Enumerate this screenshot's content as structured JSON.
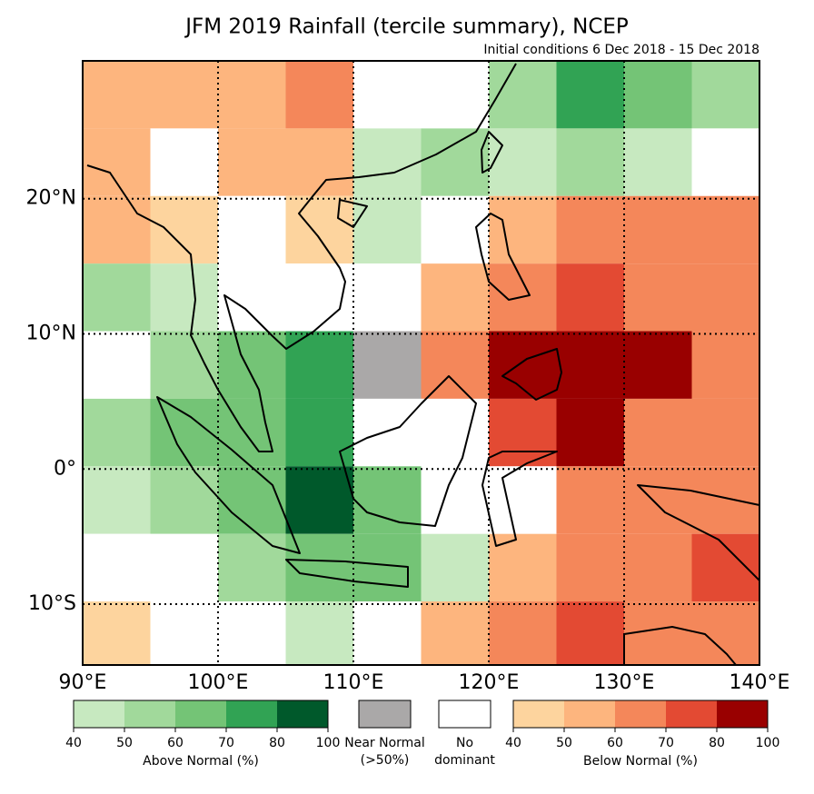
{
  "map": {
    "title": "JFM 2019 Rainfall (tercile summary), NCEP",
    "subtitle": "Initial conditions 6 Dec 2018 - 15 Dec 2018",
    "xlim": [
      90,
      140
    ],
    "ylim": [
      -14.5,
      30.2
    ],
    "xticks": [
      {
        "value": 90,
        "label": "90°E"
      },
      {
        "value": 100,
        "label": "100°E"
      },
      {
        "value": 110,
        "label": "110°E"
      },
      {
        "value": 120,
        "label": "120°E"
      },
      {
        "value": 130,
        "label": "130°E"
      },
      {
        "value": 140,
        "label": "140°E"
      }
    ],
    "yticks": [
      {
        "value": 20,
        "label": "20°N"
      },
      {
        "value": 10,
        "label": "10°N"
      },
      {
        "value": 0,
        "label": "0°"
      },
      {
        "value": -10,
        "label": "10°S"
      }
    ],
    "grid": true,
    "cells": [
      [
        [
          "below",
          50
        ],
        [
          "below",
          50
        ],
        [
          "below",
          50
        ],
        [
          "below",
          60
        ],
        [
          "none",
          null
        ],
        [
          "none",
          null
        ],
        [
          "above",
          50
        ],
        [
          "above",
          70
        ],
        [
          "above",
          60
        ],
        [
          "above",
          50
        ]
      ],
      [
        [
          "below",
          50
        ],
        [
          "none",
          null
        ],
        [
          "below",
          50
        ],
        [
          "below",
          50
        ],
        [
          "above",
          40
        ],
        [
          "above",
          50
        ],
        [
          "above",
          40
        ],
        [
          "above",
          50
        ],
        [
          "above",
          40
        ],
        [
          "none",
          null
        ]
      ],
      [
        [
          "below",
          50
        ],
        [
          "below",
          40
        ],
        [
          "none",
          null
        ],
        [
          "below",
          40
        ],
        [
          "above",
          40
        ],
        [
          "none",
          null
        ],
        [
          "below",
          50
        ],
        [
          "below",
          60
        ],
        [
          "below",
          60
        ],
        [
          "below",
          60
        ]
      ],
      [
        [
          "above",
          50
        ],
        [
          "above",
          40
        ],
        [
          "none",
          null
        ],
        [
          "none",
          null
        ],
        [
          "none",
          null
        ],
        [
          "below",
          50
        ],
        [
          "below",
          60
        ],
        [
          "below",
          70
        ],
        [
          "below",
          60
        ],
        [
          "below",
          60
        ]
      ],
      [
        [
          "none",
          null
        ],
        [
          "above",
          50
        ],
        [
          "above",
          60
        ],
        [
          "above",
          70
        ],
        [
          "near",
          55
        ],
        [
          "below",
          60
        ],
        [
          "below",
          90
        ],
        [
          "below",
          90
        ],
        [
          "below",
          90
        ],
        [
          "below",
          60
        ]
      ],
      [
        [
          "above",
          50
        ],
        [
          "above",
          60
        ],
        [
          "above",
          60
        ],
        [
          "above",
          70
        ],
        [
          "none",
          null
        ],
        [
          "none",
          null
        ],
        [
          "below",
          70
        ],
        [
          "below",
          80
        ],
        [
          "below",
          60
        ],
        [
          "below",
          60
        ]
      ],
      [
        [
          "above",
          40
        ],
        [
          "above",
          50
        ],
        [
          "above",
          60
        ],
        [
          "above",
          80
        ],
        [
          "above",
          60
        ],
        [
          "none",
          null
        ],
        [
          "none",
          null
        ],
        [
          "below",
          60
        ],
        [
          "below",
          60
        ],
        [
          "below",
          60
        ]
      ],
      [
        [
          "none",
          null
        ],
        [
          "none",
          null
        ],
        [
          "above",
          50
        ],
        [
          "above",
          60
        ],
        [
          "above",
          60
        ],
        [
          "above",
          40
        ],
        [
          "below",
          50
        ],
        [
          "below",
          60
        ],
        [
          "below",
          60
        ],
        [
          "below",
          70
        ]
      ],
      [
        [
          "below",
          40
        ],
        [
          "none",
          null
        ],
        [
          "none",
          null
        ],
        [
          "above",
          40
        ],
        [
          "none",
          null
        ],
        [
          "below",
          50
        ],
        [
          "below",
          60
        ],
        [
          "below",
          70
        ],
        [
          "below",
          60
        ],
        [
          "below",
          60
        ]
      ]
    ],
    "legend": {
      "above": {
        "label": "Above Normal (%)",
        "ticks": [
          40,
          50,
          60,
          70,
          80,
          100
        ],
        "colors": [
          "#c7e9c0",
          "#a1d99b",
          "#74c476",
          "#31a354",
          "#00592b"
        ]
      },
      "near": {
        "label": [
          "Near Normal",
          "(>50%)"
        ],
        "color": "#aaa8a8"
      },
      "none": {
        "label": [
          "No",
          "dominant"
        ],
        "color": "#ffffff"
      },
      "below": {
        "label": "Below Normal (%)",
        "ticks": [
          40,
          50,
          60,
          70,
          80,
          100
        ],
        "colors": [
          "#fdd49e",
          "#fdb57e",
          "#f4875a",
          "#e34a33",
          "#990000"
        ]
      }
    }
  }
}
